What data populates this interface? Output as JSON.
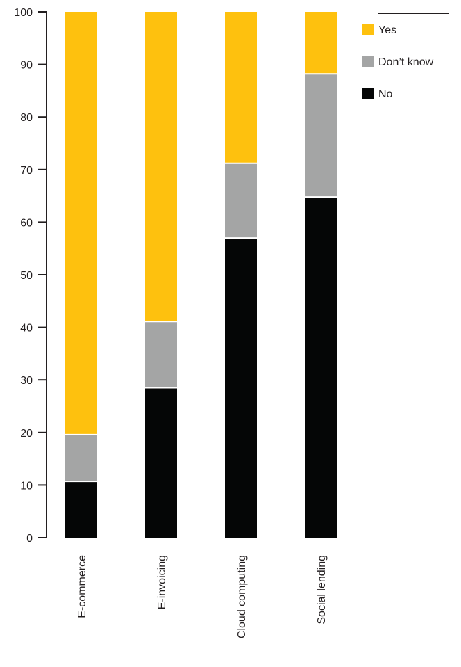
{
  "chart_data": {
    "type": "bar",
    "stacked": true,
    "categories": [
      "E-commerce",
      "E-invoicing",
      "Cloud computing",
      "Social lending"
    ],
    "series": [
      {
        "name": "No",
        "color": "#050606",
        "values": [
          10.7,
          28.5,
          57.0,
          64.8
        ]
      },
      {
        "name": "Don’t know",
        "color": "#a4a5a5",
        "values": [
          8.9,
          12.6,
          14.2,
          23.4
        ]
      },
      {
        "name": "Yes",
        "color": "#fec10e",
        "values": [
          80.4,
          58.9,
          28.8,
          11.8
        ]
      }
    ],
    "legend_order": [
      "Yes",
      "Don’t know",
      "No"
    ],
    "legend_position": "top-right",
    "ylim": [
      0,
      100
    ],
    "yticks": [
      0,
      10,
      20,
      30,
      40,
      50,
      60,
      70,
      80,
      90,
      100
    ],
    "grid": false,
    "xlabel": "",
    "ylabel": ""
  }
}
